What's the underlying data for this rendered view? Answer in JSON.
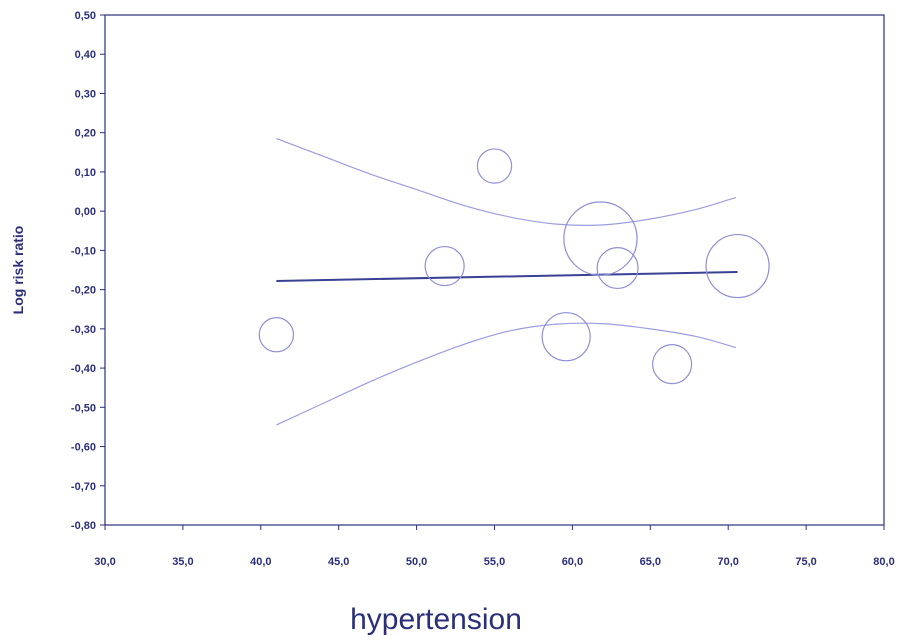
{
  "chart_data": {
    "type": "scatter",
    "title": "",
    "xlabel": "hypertension",
    "ylabel": "Log risk ratio",
    "xlim": [
      30,
      80
    ],
    "ylim": [
      -0.8,
      0.5
    ],
    "x_ticks": [
      "30,0",
      "35,0",
      "40,0",
      "45,0",
      "50,0",
      "55,0",
      "60,0",
      "65,0",
      "70,0",
      "75,0",
      "80,0"
    ],
    "y_ticks": [
      "0,50",
      "0,40",
      "0,30",
      "0,20",
      "0,10",
      "0,00",
      "-0,10",
      "-0,20",
      "-0,30",
      "-0,40",
      "-0,50",
      "-0,60",
      "-0,70",
      "-0,80"
    ],
    "points": [
      {
        "x": 41.0,
        "y": -0.315,
        "size": 0.57
      },
      {
        "x": 51.8,
        "y": -0.14,
        "size": 0.65
      },
      {
        "x": 55.0,
        "y": 0.115,
        "size": 0.57
      },
      {
        "x": 59.6,
        "y": -0.32,
        "size": 0.8
      },
      {
        "x": 61.8,
        "y": -0.07,
        "size": 1.22
      },
      {
        "x": 62.9,
        "y": -0.145,
        "size": 0.68
      },
      {
        "x": 66.4,
        "y": -0.39,
        "size": 0.65
      },
      {
        "x": 70.6,
        "y": -0.14,
        "size": 1.05
      }
    ],
    "regression_line": {
      "x": [
        41.0,
        70.6
      ],
      "y": [
        -0.178,
        -0.155
      ]
    },
    "upper_ci": {
      "x": [
        41.0,
        44.0,
        47.0,
        50.0,
        53.0,
        56.0,
        59.0,
        62.0,
        65.0,
        68.0,
        70.5
      ],
      "y": [
        0.185,
        0.14,
        0.095,
        0.055,
        0.015,
        -0.015,
        -0.033,
        -0.035,
        -0.02,
        0.005,
        0.035
      ]
    },
    "lower_ci": {
      "x": [
        41.0,
        44.0,
        47.0,
        50.0,
        53.0,
        56.0,
        59.0,
        62.0,
        65.0,
        68.0,
        70.5
      ],
      "y": [
        -0.545,
        -0.49,
        -0.435,
        -0.385,
        -0.34,
        -0.305,
        -0.288,
        -0.287,
        -0.3,
        -0.32,
        -0.348
      ]
    },
    "grid": false,
    "legend": "none",
    "colors": {
      "axis": "#2b2f7a",
      "bubble": "#8f8fd6",
      "regression": "#3a4193",
      "ci": "#9c9ce0",
      "label": "#2b2f7a"
    }
  }
}
